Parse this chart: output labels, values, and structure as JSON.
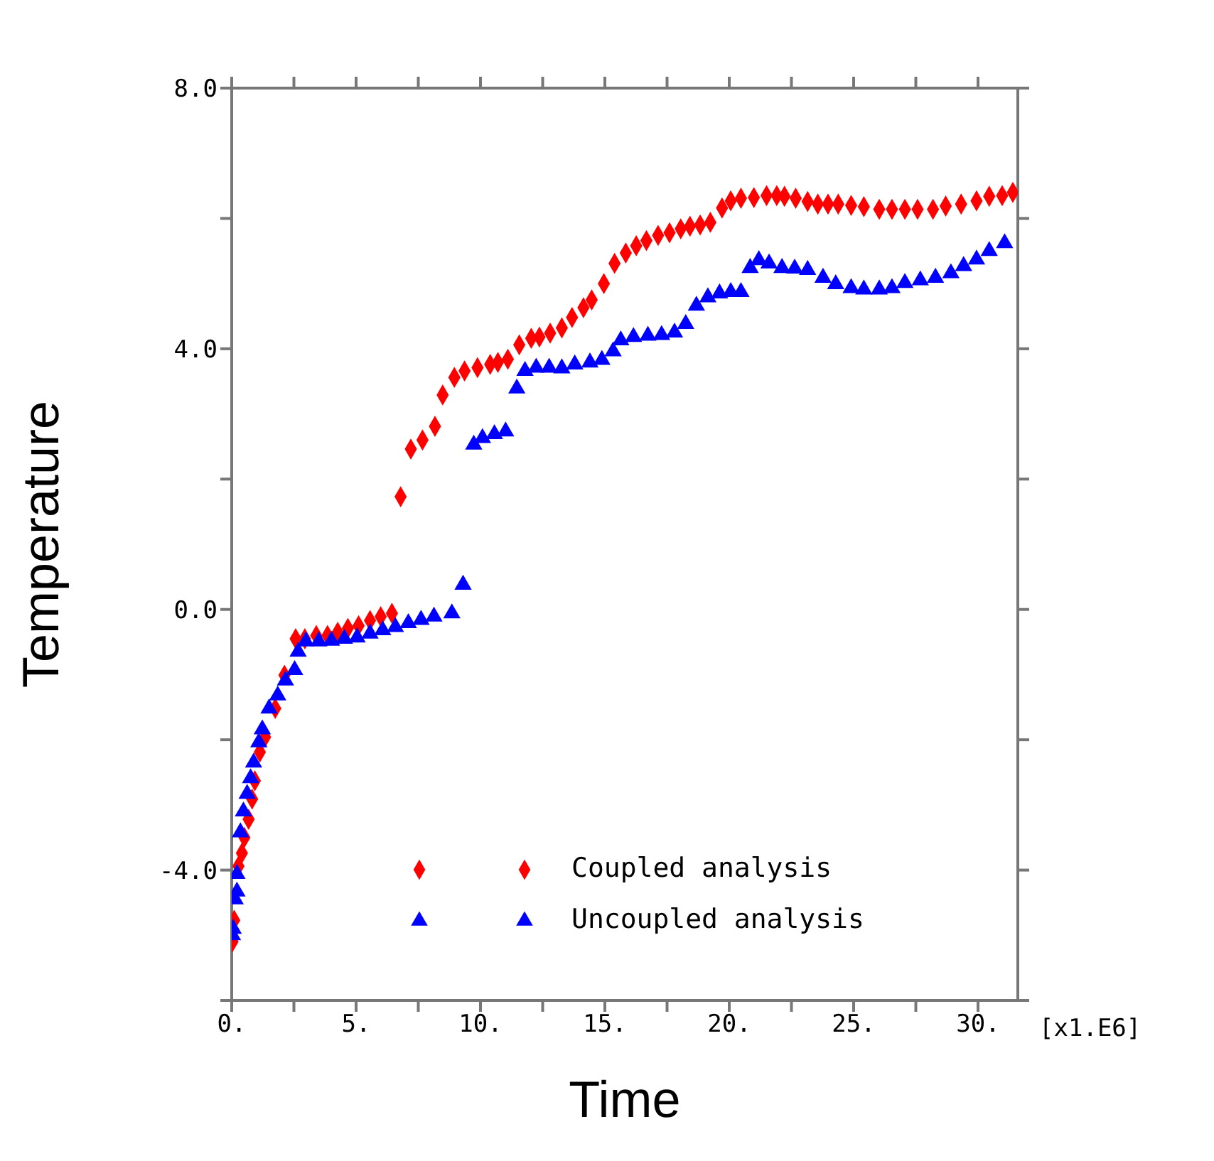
{
  "chart_data": {
    "type": "scatter",
    "xlabel": "Time",
    "ylabel": "Temperature",
    "annotations": [
      "[x1.E6]"
    ],
    "xlim": [
      0,
      31.6
    ],
    "ylim": [
      -6,
      8
    ],
    "xticks": [
      {
        "value": 0,
        "label": "0."
      },
      {
        "value": 2.5,
        "label": null
      },
      {
        "value": 5,
        "label": "5."
      },
      {
        "value": 7.5,
        "label": null
      },
      {
        "value": 10,
        "label": "10."
      },
      {
        "value": 12.5,
        "label": null
      },
      {
        "value": 15,
        "label": "15."
      },
      {
        "value": 17.5,
        "label": null
      },
      {
        "value": 20,
        "label": "20."
      },
      {
        "value": 22.5,
        "label": null
      },
      {
        "value": 25,
        "label": "25."
      },
      {
        "value": 27.5,
        "label": null
      },
      {
        "value": 30,
        "label": "30."
      }
    ],
    "yticks": [
      {
        "value": -6,
        "label": null
      },
      {
        "value": -4,
        "label": "-4.0"
      },
      {
        "value": -2,
        "label": null
      },
      {
        "value": 0,
        "label": "0.0"
      },
      {
        "value": 2,
        "label": null
      },
      {
        "value": 4,
        "label": "4.0"
      },
      {
        "value": 6,
        "label": null
      },
      {
        "value": 8,
        "label": "8.0"
      }
    ],
    "legend": "bottom",
    "series": [
      {
        "name": "Coupled analysis",
        "color": "#ff0000",
        "marker": "diamond",
        "x": [
          0.03,
          0.1,
          0.27,
          0.41,
          0.51,
          0.68,
          0.82,
          0.93,
          1.13,
          1.34,
          1.75,
          2.12,
          2.57,
          2.94,
          3.4,
          3.85,
          4.26,
          4.67,
          5.1,
          5.56,
          5.99,
          6.44,
          6.79,
          7.2,
          7.67,
          8.17,
          8.48,
          8.95,
          9.36,
          9.88,
          10.39,
          10.7,
          11.1,
          11.56,
          12.04,
          12.37,
          12.8,
          13.27,
          13.68,
          14.14,
          14.47,
          14.96,
          15.39,
          15.84,
          16.26,
          16.67,
          17.14,
          17.6,
          18.05,
          18.42,
          18.83,
          19.24,
          19.71,
          20.06,
          20.47,
          20.99,
          21.5,
          21.91,
          22.22,
          22.67,
          23.15,
          23.56,
          23.97,
          24.38,
          24.9,
          25.41,
          26.03,
          26.54,
          27.06,
          27.57,
          28.19,
          28.7,
          29.32,
          29.94,
          30.45,
          30.97,
          31.4
        ],
        "values": [
          -5.1,
          -4.77,
          -3.94,
          -3.74,
          -3.5,
          -3.22,
          -2.91,
          -2.63,
          -2.19,
          -1.96,
          -1.52,
          -1.01,
          -0.45,
          -0.45,
          -0.4,
          -0.4,
          -0.35,
          -0.29,
          -0.25,
          -0.17,
          -0.11,
          -0.06,
          1.73,
          2.46,
          2.6,
          2.81,
          3.29,
          3.56,
          3.66,
          3.71,
          3.76,
          3.79,
          3.84,
          4.06,
          4.16,
          4.18,
          4.24,
          4.32,
          4.48,
          4.63,
          4.75,
          5.0,
          5.31,
          5.47,
          5.58,
          5.66,
          5.74,
          5.78,
          5.84,
          5.88,
          5.9,
          5.94,
          6.16,
          6.27,
          6.31,
          6.32,
          6.35,
          6.35,
          6.34,
          6.31,
          6.26,
          6.22,
          6.22,
          6.22,
          6.2,
          6.18,
          6.14,
          6.14,
          6.14,
          6.14,
          6.14,
          6.19,
          6.22,
          6.27,
          6.34,
          6.35,
          6.4
        ]
      },
      {
        "name": "Uncoupled analysis",
        "color": "#0000ff",
        "marker": "triangle",
        "x": [
          0.03,
          0.06,
          0.14,
          0.21,
          0.21,
          0.35,
          0.47,
          0.62,
          0.76,
          0.88,
          1.09,
          1.23,
          1.5,
          1.85,
          2.16,
          2.53,
          2.67,
          2.98,
          3.5,
          4.01,
          4.53,
          5.04,
          5.56,
          6.07,
          6.58,
          7.1,
          7.61,
          8.13,
          8.85,
          9.3,
          9.73,
          10.08,
          10.56,
          11.01,
          11.46,
          11.79,
          12.24,
          12.76,
          13.27,
          13.79,
          14.4,
          14.88,
          15.33,
          15.64,
          16.15,
          16.73,
          17.28,
          17.8,
          18.25,
          18.68,
          19.14,
          19.61,
          20.06,
          20.47,
          20.84,
          21.19,
          21.6,
          22.12,
          22.63,
          23.15,
          23.77,
          24.28,
          24.9,
          25.41,
          26.03,
          26.54,
          27.06,
          27.68,
          28.29,
          28.91,
          29.42,
          29.94,
          30.45,
          31.07
        ],
        "values": [
          -5.0,
          -4.9,
          -4.45,
          -4.33,
          -4.06,
          -3.42,
          -3.1,
          -2.83,
          -2.59,
          -2.35,
          -2.04,
          -1.84,
          -1.52,
          -1.32,
          -1.09,
          -0.93,
          -0.65,
          -0.49,
          -0.49,
          -0.48,
          -0.45,
          -0.43,
          -0.37,
          -0.32,
          -0.27,
          -0.21,
          -0.16,
          -0.11,
          -0.06,
          0.38,
          2.53,
          2.63,
          2.69,
          2.73,
          3.39,
          3.66,
          3.71,
          3.71,
          3.7,
          3.76,
          3.79,
          3.83,
          3.96,
          4.13,
          4.18,
          4.2,
          4.21,
          4.25,
          4.38,
          4.66,
          4.79,
          4.85,
          4.87,
          4.87,
          5.24,
          5.36,
          5.31,
          5.24,
          5.23,
          5.21,
          5.09,
          4.99,
          4.93,
          4.91,
          4.91,
          4.93,
          5.01,
          5.05,
          5.09,
          5.16,
          5.27,
          5.37,
          5.5,
          5.62
        ]
      }
    ]
  }
}
